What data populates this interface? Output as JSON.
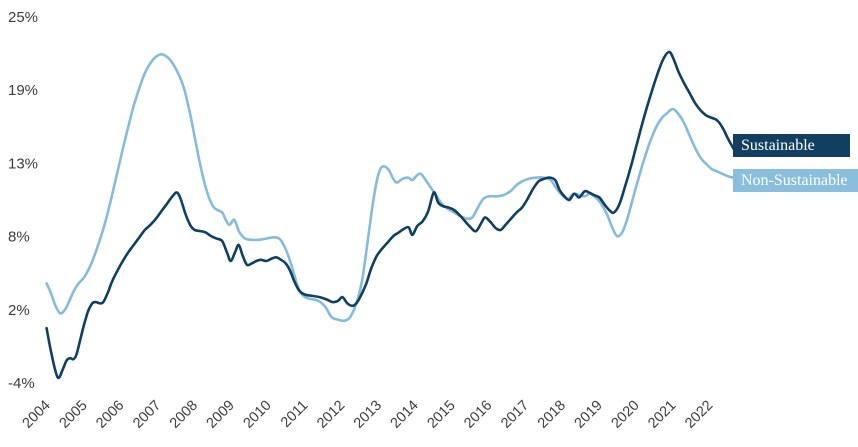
{
  "chart_data": {
    "type": "line",
    "title": "",
    "legend_position": "right-edge-inline",
    "grid": false,
    "background": "#ffffff",
    "axis_text_color": "#3d3d3d",
    "ylim": [
      -4.2,
      25.2
    ],
    "y_axis": {
      "tick_labels": [
        "25%",
        "19%",
        "13%",
        "8%",
        "2%",
        "-4%"
      ],
      "tick_values": [
        25,
        19,
        13,
        8,
        2,
        -4
      ]
    },
    "x_axis": {
      "tick_years": [
        "2004",
        "2005",
        "2006",
        "2007",
        "2008",
        "2009",
        "2010",
        "2011",
        "2012",
        "2013",
        "2014",
        "2015",
        "2016",
        "2017",
        "2018",
        "2019",
        "2020",
        "2021",
        "2022"
      ]
    },
    "series": [
      {
        "name": "Sustainable",
        "color": "#0f3f61",
        "legend_bg": "#123f60",
        "data": [
          [
            2004.18,
            0.2
          ],
          [
            2004.28,
            -1.4
          ],
          [
            2004.4,
            -3.0
          ],
          [
            2004.5,
            -3.8
          ],
          [
            2004.62,
            -3.1
          ],
          [
            2004.72,
            -2.4
          ],
          [
            2004.82,
            -2.2
          ],
          [
            2004.9,
            -2.3
          ],
          [
            2004.98,
            -2.0
          ],
          [
            2005.08,
            -0.9
          ],
          [
            2005.18,
            0.3
          ],
          [
            2005.3,
            1.5
          ],
          [
            2005.42,
            2.2
          ],
          [
            2005.52,
            2.3
          ],
          [
            2005.62,
            2.2
          ],
          [
            2005.72,
            2.3
          ],
          [
            2005.85,
            3.1
          ],
          [
            2005.95,
            3.9
          ],
          [
            2006.1,
            4.8
          ],
          [
            2006.25,
            5.6
          ],
          [
            2006.4,
            6.3
          ],
          [
            2006.55,
            6.9
          ],
          [
            2006.7,
            7.5
          ],
          [
            2006.85,
            8.1
          ],
          [
            2007.0,
            8.5
          ],
          [
            2007.15,
            9.0
          ],
          [
            2007.3,
            9.6
          ],
          [
            2007.45,
            10.2
          ],
          [
            2007.6,
            10.8
          ],
          [
            2007.72,
            11.1
          ],
          [
            2007.82,
            10.6
          ],
          [
            2007.95,
            9.4
          ],
          [
            2008.08,
            8.5
          ],
          [
            2008.2,
            8.1
          ],
          [
            2008.35,
            8.0
          ],
          [
            2008.5,
            7.9
          ],
          [
            2008.65,
            7.6
          ],
          [
            2008.8,
            7.4
          ],
          [
            2008.95,
            7.2
          ],
          [
            2009.08,
            6.3
          ],
          [
            2009.18,
            5.6
          ],
          [
            2009.3,
            6.3
          ],
          [
            2009.4,
            6.9
          ],
          [
            2009.5,
            6.1
          ],
          [
            2009.62,
            5.3
          ],
          [
            2009.75,
            5.4
          ],
          [
            2009.88,
            5.6
          ],
          [
            2010.0,
            5.7
          ],
          [
            2010.15,
            5.6
          ],
          [
            2010.3,
            5.8
          ],
          [
            2010.42,
            5.9
          ],
          [
            2010.55,
            5.7
          ],
          [
            2010.68,
            5.4
          ],
          [
            2010.8,
            4.8
          ],
          [
            2010.92,
            3.9
          ],
          [
            2011.05,
            3.2
          ],
          [
            2011.2,
            2.9
          ],
          [
            2011.4,
            2.8
          ],
          [
            2011.6,
            2.7
          ],
          [
            2011.8,
            2.5
          ],
          [
            2011.95,
            2.3
          ],
          [
            2012.1,
            2.4
          ],
          [
            2012.22,
            2.7
          ],
          [
            2012.35,
            2.2
          ],
          [
            2012.5,
            2.0
          ],
          [
            2012.62,
            2.3
          ],
          [
            2012.75,
            3.0
          ],
          [
            2012.88,
            3.9
          ],
          [
            2013.0,
            5.0
          ],
          [
            2013.15,
            6.0
          ],
          [
            2013.3,
            6.6
          ],
          [
            2013.45,
            7.1
          ],
          [
            2013.6,
            7.6
          ],
          [
            2013.75,
            7.9
          ],
          [
            2013.9,
            8.2
          ],
          [
            2014.02,
            8.3
          ],
          [
            2014.12,
            7.7
          ],
          [
            2014.25,
            8.4
          ],
          [
            2014.4,
            8.8
          ],
          [
            2014.55,
            9.6
          ],
          [
            2014.7,
            11.1
          ],
          [
            2014.82,
            10.3
          ],
          [
            2014.95,
            10.0
          ],
          [
            2015.1,
            9.9
          ],
          [
            2015.25,
            9.7
          ],
          [
            2015.4,
            9.3
          ],
          [
            2015.55,
            8.8
          ],
          [
            2015.7,
            8.3
          ],
          [
            2015.85,
            8.0
          ],
          [
            2016.0,
            8.7
          ],
          [
            2016.1,
            9.1
          ],
          [
            2016.25,
            8.7
          ],
          [
            2016.4,
            8.2
          ],
          [
            2016.52,
            8.1
          ],
          [
            2016.65,
            8.5
          ],
          [
            2016.8,
            9.0
          ],
          [
            2016.95,
            9.5
          ],
          [
            2017.1,
            9.9
          ],
          [
            2017.25,
            10.6
          ],
          [
            2017.4,
            11.4
          ],
          [
            2017.55,
            12.0
          ],
          [
            2017.7,
            12.2
          ],
          [
            2017.85,
            12.3
          ],
          [
            2018.0,
            12.1
          ],
          [
            2018.12,
            11.3
          ],
          [
            2018.25,
            10.8
          ],
          [
            2018.38,
            10.5
          ],
          [
            2018.52,
            11.0
          ],
          [
            2018.65,
            10.7
          ],
          [
            2018.8,
            11.2
          ],
          [
            2018.92,
            11.1
          ],
          [
            2019.05,
            10.9
          ],
          [
            2019.2,
            10.7
          ],
          [
            2019.35,
            10.1
          ],
          [
            2019.5,
            9.6
          ],
          [
            2019.6,
            9.5
          ],
          [
            2019.75,
            10.2
          ],
          [
            2019.9,
            11.6
          ],
          [
            2020.05,
            13.1
          ],
          [
            2020.2,
            14.8
          ],
          [
            2020.4,
            17.0
          ],
          [
            2020.6,
            19.0
          ],
          [
            2020.8,
            20.8
          ],
          [
            2020.95,
            21.9
          ],
          [
            2021.1,
            22.4
          ],
          [
            2021.22,
            21.8
          ],
          [
            2021.35,
            20.8
          ],
          [
            2021.5,
            19.9
          ],
          [
            2021.65,
            19.1
          ],
          [
            2021.8,
            18.3
          ],
          [
            2021.95,
            17.7
          ],
          [
            2022.1,
            17.3
          ],
          [
            2022.25,
            17.1
          ],
          [
            2022.4,
            16.9
          ],
          [
            2022.55,
            16.3
          ],
          [
            2022.7,
            15.4
          ],
          [
            2022.85,
            14.6
          ]
        ]
      },
      {
        "name": "Non-Sustainable",
        "color": "#85bbdb",
        "legend_bg": "#8abedd",
        "data": [
          [
            2004.18,
            3.8
          ],
          [
            2004.3,
            3.0
          ],
          [
            2004.42,
            2.0
          ],
          [
            2004.55,
            1.4
          ],
          [
            2004.68,
            1.7
          ],
          [
            2004.8,
            2.4
          ],
          [
            2004.92,
            3.2
          ],
          [
            2005.05,
            3.8
          ],
          [
            2005.2,
            4.3
          ],
          [
            2005.35,
            5.1
          ],
          [
            2005.5,
            6.2
          ],
          [
            2005.65,
            7.5
          ],
          [
            2005.8,
            9.0
          ],
          [
            2005.95,
            10.8
          ],
          [
            2006.1,
            12.7
          ],
          [
            2006.25,
            14.6
          ],
          [
            2006.4,
            16.4
          ],
          [
            2006.55,
            18.1
          ],
          [
            2006.7,
            19.5
          ],
          [
            2006.85,
            20.7
          ],
          [
            2007.0,
            21.5
          ],
          [
            2007.15,
            22.0
          ],
          [
            2007.3,
            22.2
          ],
          [
            2007.45,
            22.0
          ],
          [
            2007.6,
            21.5
          ],
          [
            2007.75,
            20.7
          ],
          [
            2007.9,
            19.6
          ],
          [
            2008.02,
            18.2
          ],
          [
            2008.15,
            16.4
          ],
          [
            2008.3,
            14.1
          ],
          [
            2008.45,
            12.1
          ],
          [
            2008.58,
            10.8
          ],
          [
            2008.7,
            10.0
          ],
          [
            2008.82,
            9.7
          ],
          [
            2008.95,
            9.5
          ],
          [
            2009.05,
            8.9
          ],
          [
            2009.15,
            8.5
          ],
          [
            2009.28,
            8.9
          ],
          [
            2009.42,
            7.9
          ],
          [
            2009.58,
            7.4
          ],
          [
            2009.75,
            7.3
          ],
          [
            2009.95,
            7.3
          ],
          [
            2010.15,
            7.4
          ],
          [
            2010.35,
            7.5
          ],
          [
            2010.5,
            7.4
          ],
          [
            2010.62,
            6.9
          ],
          [
            2010.75,
            6.0
          ],
          [
            2010.88,
            4.8
          ],
          [
            2011.0,
            3.6
          ],
          [
            2011.12,
            2.9
          ],
          [
            2011.28,
            2.6
          ],
          [
            2011.45,
            2.5
          ],
          [
            2011.62,
            2.3
          ],
          [
            2011.78,
            1.8
          ],
          [
            2011.92,
            1.1
          ],
          [
            2012.08,
            0.9
          ],
          [
            2012.25,
            0.8
          ],
          [
            2012.4,
            1.0
          ],
          [
            2012.52,
            1.6
          ],
          [
            2012.64,
            2.6
          ],
          [
            2012.75,
            4.0
          ],
          [
            2012.85,
            6.0
          ],
          [
            2012.95,
            8.2
          ],
          [
            2013.05,
            10.3
          ],
          [
            2013.15,
            12.0
          ],
          [
            2013.25,
            13.0
          ],
          [
            2013.35,
            13.2
          ],
          [
            2013.48,
            12.9
          ],
          [
            2013.6,
            12.2
          ],
          [
            2013.7,
            11.9
          ],
          [
            2013.85,
            12.2
          ],
          [
            2014.0,
            12.3
          ],
          [
            2014.12,
            12.1
          ],
          [
            2014.25,
            12.5
          ],
          [
            2014.35,
            12.6
          ],
          [
            2014.48,
            12.1
          ],
          [
            2014.62,
            11.5
          ],
          [
            2014.78,
            10.8
          ],
          [
            2014.92,
            10.2
          ],
          [
            2015.08,
            9.8
          ],
          [
            2015.25,
            9.5
          ],
          [
            2015.42,
            9.2
          ],
          [
            2015.6,
            9.0
          ],
          [
            2015.75,
            9.1
          ],
          [
            2015.9,
            9.9
          ],
          [
            2016.05,
            10.6
          ],
          [
            2016.2,
            10.8
          ],
          [
            2016.4,
            10.8
          ],
          [
            2016.6,
            10.9
          ],
          [
            2016.78,
            11.2
          ],
          [
            2016.95,
            11.7
          ],
          [
            2017.1,
            12.0
          ],
          [
            2017.28,
            12.2
          ],
          [
            2017.5,
            12.3
          ],
          [
            2017.7,
            12.3
          ],
          [
            2017.88,
            12.1
          ],
          [
            2018.02,
            11.5
          ],
          [
            2018.18,
            10.9
          ],
          [
            2018.35,
            10.6
          ],
          [
            2018.5,
            11.0
          ],
          [
            2018.65,
            10.9
          ],
          [
            2018.8,
            10.8
          ],
          [
            2018.95,
            11.0
          ],
          [
            2019.1,
            10.7
          ],
          [
            2019.25,
            10.2
          ],
          [
            2019.4,
            9.4
          ],
          [
            2019.55,
            8.3
          ],
          [
            2019.68,
            7.6
          ],
          [
            2019.82,
            7.9
          ],
          [
            2019.95,
            8.9
          ],
          [
            2020.1,
            10.5
          ],
          [
            2020.25,
            12.1
          ],
          [
            2020.42,
            13.8
          ],
          [
            2020.58,
            15.2
          ],
          [
            2020.75,
            16.4
          ],
          [
            2020.9,
            17.1
          ],
          [
            2021.05,
            17.5
          ],
          [
            2021.2,
            17.8
          ],
          [
            2021.35,
            17.4
          ],
          [
            2021.5,
            16.7
          ],
          [
            2021.65,
            15.7
          ],
          [
            2021.8,
            14.7
          ],
          [
            2021.95,
            13.9
          ],
          [
            2022.1,
            13.4
          ],
          [
            2022.25,
            13.0
          ],
          [
            2022.4,
            12.8
          ],
          [
            2022.55,
            12.6
          ],
          [
            2022.7,
            12.4
          ],
          [
            2022.85,
            12.3
          ]
        ]
      }
    ]
  },
  "legend": {
    "sustainable_label": "Sustainable",
    "non_sustainable_label": "Non-Sustainable"
  }
}
